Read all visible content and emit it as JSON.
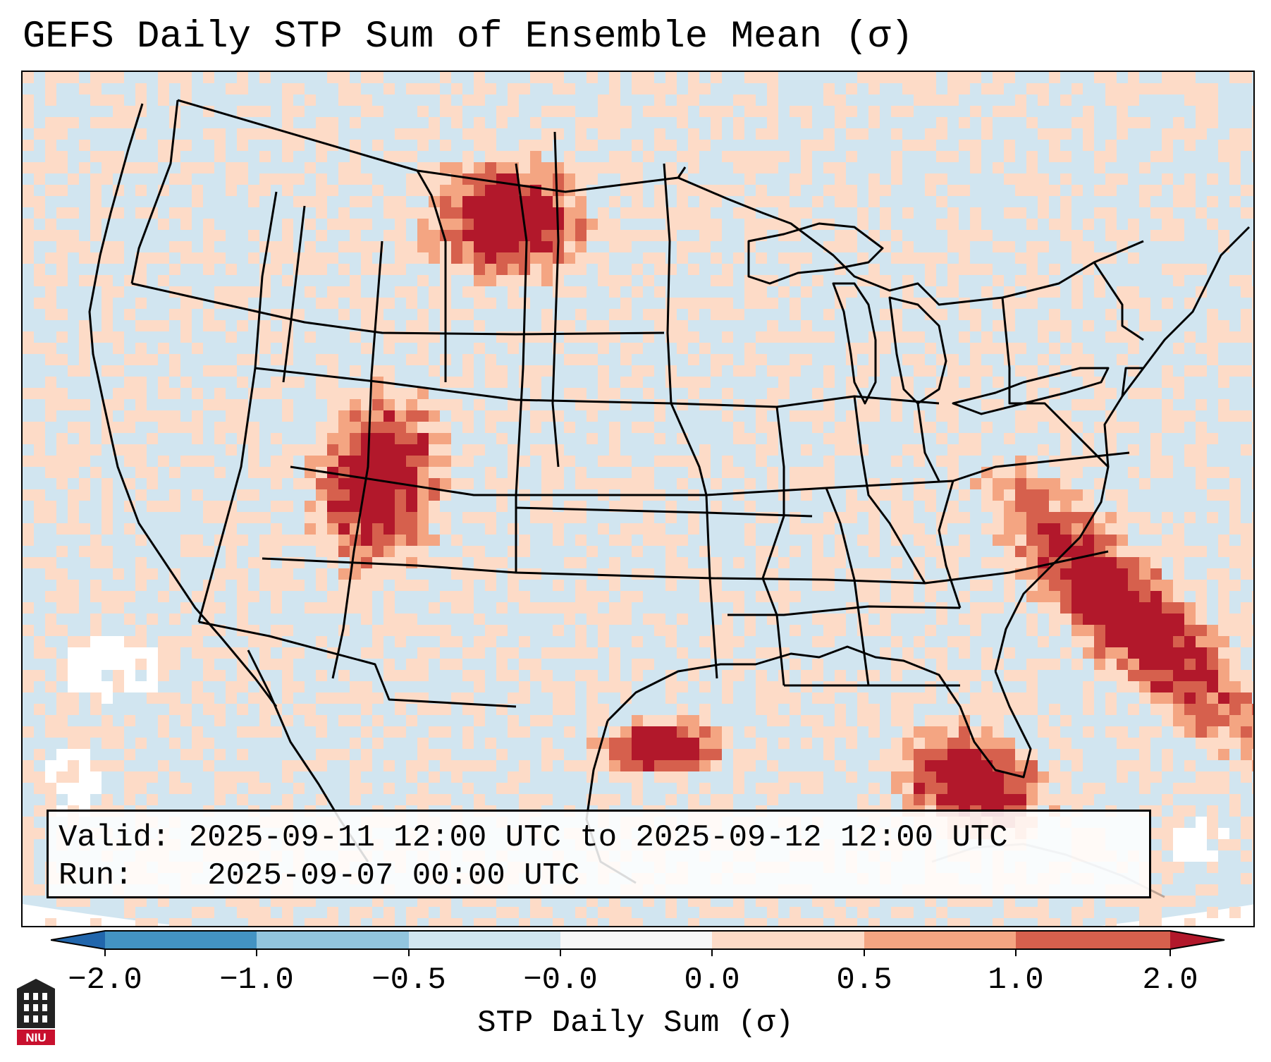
{
  "title": "GEFS Daily STP Sum of Ensemble Mean (σ)",
  "info": {
    "valid_label": "Valid:",
    "valid_value": "2025-09-11 12:00 UTC to 2025-09-12 12:00 UTC",
    "run_label": "Run:",
    "run_value": "2025-09-07 00:00 UTC"
  },
  "colorbar": {
    "label": "STP Daily Sum (σ)",
    "ticks": [
      "−2.0",
      "−1.0",
      "−0.5",
      "−0.0",
      "0.0",
      "0.5",
      "1.0",
      "2.0"
    ],
    "bins": [
      {
        "range": "below -2.0",
        "color": "#2166ac"
      },
      {
        "range": "-2.0 to -1.0",
        "color": "#4393c3"
      },
      {
        "range": "-1.0 to -0.5",
        "color": "#92c5de"
      },
      {
        "range": "-0.5 to -0.0",
        "color": "#d1e5f0"
      },
      {
        "range": "-0.0 to 0.0",
        "color": "#f7f7f7"
      },
      {
        "range": "0.0 to 0.5",
        "color": "#fddbc7"
      },
      {
        "range": "0.5 to 1.0",
        "color": "#f4a582"
      },
      {
        "range": "1.0 to 2.0",
        "color": "#d6604d"
      },
      {
        "range": "above 2.0",
        "color": "#b2182b"
      }
    ]
  },
  "map": {
    "region": "Contiguous United States",
    "background_color": "#d1e5f0",
    "regions_of_elevated_stp": [
      "Montana / western North Dakota",
      "Four Corners (Utah, Colorado, Arizona, New Mexico)",
      "Florida peninsula",
      "Atlantic offshore southeast of the Carolinas"
    ]
  },
  "logo": {
    "text": "NIU"
  }
}
